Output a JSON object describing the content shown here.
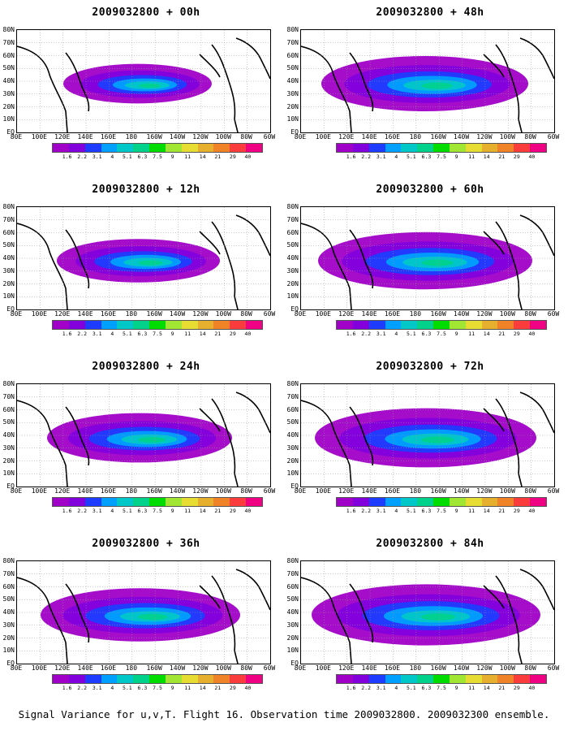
{
  "panels": [
    {
      "title": "2009032800 + 00h",
      "intensity": 0.35
    },
    {
      "title": "2009032800 + 48h",
      "intensity": 0.75
    },
    {
      "title": "2009032800 + 12h",
      "intensity": 0.45
    },
    {
      "title": "2009032800 + 60h",
      "intensity": 0.8
    },
    {
      "title": "2009032800 + 24h",
      "intensity": 0.6
    },
    {
      "title": "2009032800 + 72h",
      "intensity": 0.85
    },
    {
      "title": "2009032800 + 36h",
      "intensity": 0.7
    },
    {
      "title": "2009032800 + 84h",
      "intensity": 0.9
    }
  ],
  "lat_labels": [
    "80N",
    "70N",
    "60N",
    "50N",
    "40N",
    "30N",
    "20N",
    "10N",
    "EQ"
  ],
  "lon_labels": [
    "80E",
    "100E",
    "120E",
    "140E",
    "160E",
    "180",
    "160W",
    "140W",
    "120W",
    "100W",
    "80W",
    "60W"
  ],
  "colorbar": {
    "levels": [
      "1.6",
      "2.2",
      "3.1",
      "4",
      "5.1",
      "6.3",
      "7.5",
      "9",
      "11",
      "14",
      "21",
      "29",
      "40"
    ],
    "colors": [
      "#a000c8",
      "#8200dc",
      "#1e3cff",
      "#00a0ff",
      "#00c8c8",
      "#00d28c",
      "#00dc00",
      "#a0e632",
      "#e6dc32",
      "#e6af2d",
      "#f08228",
      "#fa3c3c",
      "#f00082"
    ]
  },
  "footer": "Signal Variance for u,v,T. Flight 16. Observation time 2009032800. 2009032300 ensemble."
}
